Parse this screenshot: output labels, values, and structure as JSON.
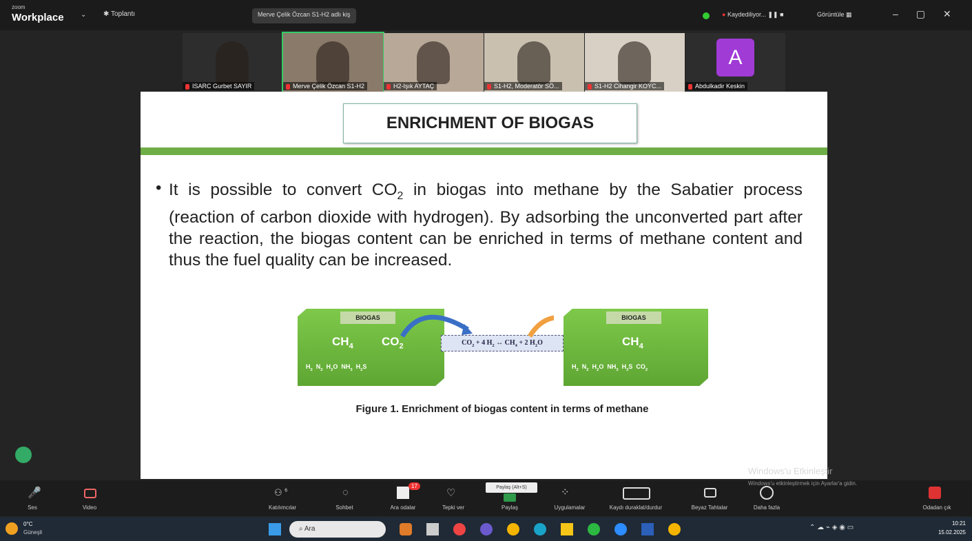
{
  "topbar": {
    "logo_small": "zoom",
    "logo": "Workplace",
    "meeting": "Toplantı",
    "speaker": "Merve Çelik Özcan S1-H2 adlı kiş",
    "recording": "Kaydediliyor...",
    "view": "Görüntüle"
  },
  "participants": [
    {
      "name": "ISARC Gurbet SAYIR"
    },
    {
      "name": "Merve Çelik Özcan S1-H2"
    },
    {
      "name": "H2-Işık AYTAÇ"
    },
    {
      "name": "S1-H2, Moderatör SÖ..."
    },
    {
      "name": "S1-H2 Cihangir KOYC..."
    },
    {
      "name": "Abdulkadir Keskin",
      "avatar": "A"
    }
  ],
  "slide": {
    "title": "ENRICHMENT OF BIOGAS",
    "bullet": [
      "It is possible to convert CO",
      "2",
      " in biogas into methane by the Sabatier process (reaction of carbon dioxide with hydrogen). By adsorbing the unconverted part after the reaction, the biogas content can be enriched in terms of methane content and thus the fuel quality can be increased."
    ],
    "figure": {
      "left": {
        "label": "BIOGAS",
        "ch4": [
          "CH",
          "4"
        ],
        "co2": [
          "CO",
          "2"
        ],
        "gases": [
          "H",
          "2",
          "  N",
          "2",
          "  H",
          "2",
          "O  NH",
          "3",
          "  H",
          "2",
          "S"
        ]
      },
      "equation": [
        "CO",
        "2",
        " + 4 H",
        "2",
        " ↔ CH",
        "4",
        " + 2 H",
        "2",
        "O"
      ],
      "right": {
        "label": "BIOGAS",
        "ch4": [
          "CH",
          "4"
        ],
        "gases": [
          "H",
          "2",
          "  N",
          "2",
          "  H",
          "2",
          "O  NH",
          "3",
          "  H",
          "2",
          "S  CO",
          "2"
        ]
      },
      "caption": "Figure 1. Enrichment of biogas content in terms of methane"
    }
  },
  "watermark": {
    "title": "Windows'u Etkinleştir",
    "text": "Windows'u etkinleştirmek için Ayarlar'a gidin."
  },
  "toolbar": {
    "audio": "Ses",
    "video": "Video",
    "participants": "Katılımcılar",
    "participant_count": "6",
    "chat": "Sohbet",
    "breakout": "Ara odalar",
    "breakout_badge": "17",
    "react": "Tepki ver",
    "share": "Paylaş",
    "share_tip": "Paylaş (Alt+S)",
    "apps": "Uygulamalar",
    "record": "Kaydı duraklat/durdur",
    "whiteboard": "Beyaz Tahtalar",
    "more": "Daha fazla",
    "leave": "Odadan çık"
  },
  "taskbar": {
    "temp": "0°C",
    "weather": "Güneşli",
    "search": "Ara",
    "time": "10:21",
    "date": "15.02.2025"
  }
}
